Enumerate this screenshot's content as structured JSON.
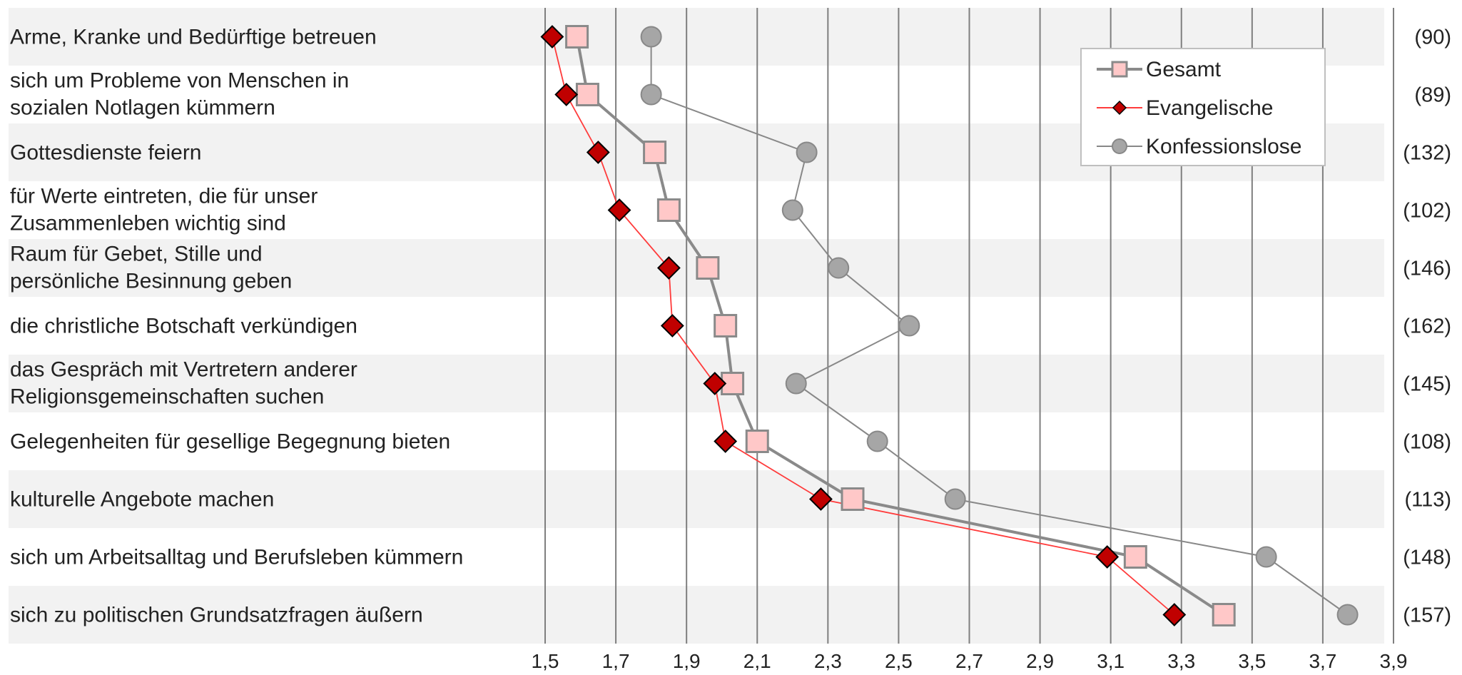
{
  "chart_data": {
    "type": "line",
    "orientation": "horizontal",
    "xlim": [
      1.5,
      3.9
    ],
    "x_ticks": [
      "1,5",
      "1,7",
      "1,9",
      "2,1",
      "2,3",
      "2,5",
      "2,7",
      "2,9",
      "3,1",
      "3,3",
      "3,5",
      "3,7",
      "3,9"
    ],
    "grid": "vertical",
    "legend_position": "top-right",
    "categories": [
      [
        "Arme, Kranke und Bedürftige betreuen"
      ],
      [
        "sich um Probleme von Menschen in",
        "sozialen Notlagen kümmern"
      ],
      [
        "Gottesdienste feiern"
      ],
      [
        "für Werte eintreten, die für unser",
        "Zusammenleben wichtig sind"
      ],
      [
        "Raum für Gebet, Stille und",
        "persönliche Besinnung geben"
      ],
      [
        "die christliche Botschaft verkündigen"
      ],
      [
        "das Gespräch mit Vertretern anderer",
        "Religionsgemeinschaften suchen"
      ],
      [
        "Gelegenheiten für gesellige Begegnung bieten"
      ],
      [
        "kulturelle Angebote machen"
      ],
      [
        "sich um Arbeitsalltag und Berufsleben kümmern"
      ],
      [
        "sich zu politischen Grundsatzfragen äußern"
      ]
    ],
    "n_labels": [
      "(90)",
      "(89)",
      "(132)",
      "(102)",
      "(146)",
      "(162)",
      "(145)",
      "(108)",
      "(113)",
      "(148)",
      "(157)"
    ],
    "series": [
      {
        "name": "Gesamt",
        "marker": "square",
        "color": "#8a8a8a",
        "fill": "#ffc8c8",
        "values": [
          1.59,
          1.62,
          1.81,
          1.85,
          1.96,
          2.01,
          2.03,
          2.1,
          2.37,
          3.17,
          3.42
        ]
      },
      {
        "name": "Evangelische",
        "marker": "diamond",
        "color": "#ff3b3b",
        "fill": "#c00000",
        "values": [
          1.52,
          1.56,
          1.65,
          1.71,
          1.85,
          1.86,
          1.98,
          2.01,
          2.28,
          3.09,
          3.28
        ]
      },
      {
        "name": "Konfessionslose",
        "marker": "circle",
        "color": "#888888",
        "fill": "#a6a6a6",
        "values": [
          1.8,
          1.8,
          2.24,
          2.2,
          2.33,
          2.53,
          2.21,
          2.44,
          2.66,
          3.54,
          3.77
        ]
      }
    ]
  }
}
